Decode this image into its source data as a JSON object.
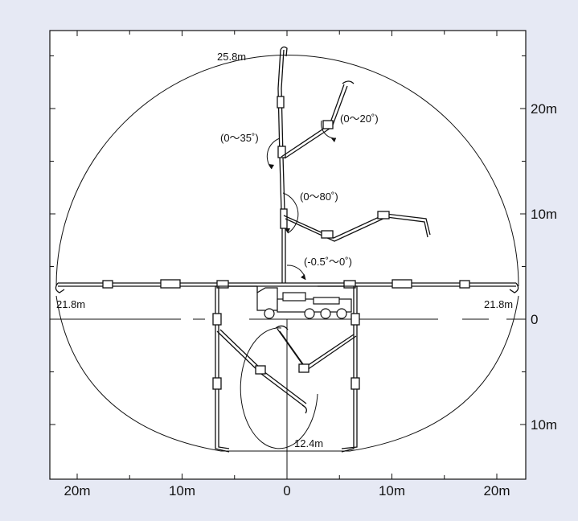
{
  "x_axis": {
    "ticks": [
      {
        "value": -20,
        "label": "20m"
      },
      {
        "value": -10,
        "label": "10m"
      },
      {
        "value": 0,
        "label": "0"
      },
      {
        "value": 10,
        "label": "10m"
      },
      {
        "value": 20,
        "label": "20m"
      }
    ]
  },
  "y_axis": {
    "ticks": [
      {
        "value": 20,
        "label": "20m"
      },
      {
        "value": 10,
        "label": "10m"
      },
      {
        "value": 0,
        "label": "0"
      },
      {
        "value": -10,
        "label": "10m"
      }
    ]
  },
  "annotations": {
    "reach_vertical": "25.8m",
    "reach_left": "21.8m",
    "reach_right": "21.8m",
    "reach_depth": "12.4m",
    "angle_section2": "(0～35˚)",
    "angle_section3": "(0～20˚)",
    "angle_section1": "(0～80˚)",
    "angle_base": "(-0.5˚～0˚)"
  },
  "colors": {
    "background": "#e6e9f4",
    "plot_background": "#ffffff",
    "line": "#111111"
  }
}
